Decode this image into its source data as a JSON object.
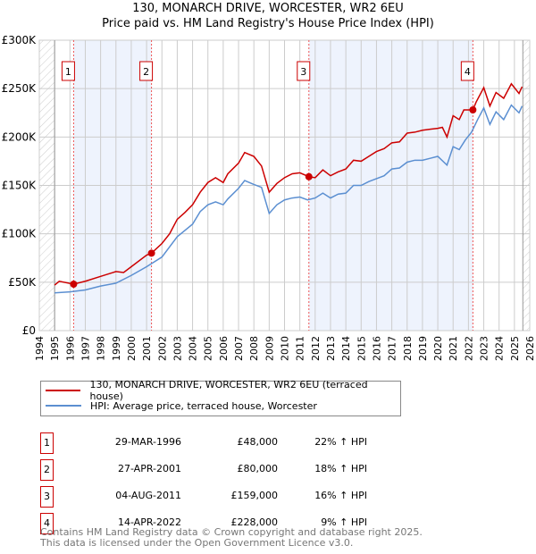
{
  "title": "130, MONARCH DRIVE, WORCESTER, WR2 6EU",
  "subtitle": "Price paid vs. HM Land Registry's House Price Index (HPI)",
  "chart_data": {
    "type": "line",
    "title": "130, MONARCH DRIVE, WORCESTER, WR2 6EU — Price paid vs. HM Land Registry's House Price Index (HPI)",
    "xlim": [
      1994,
      2026
    ],
    "ylim": [
      0,
      300000
    ],
    "x_ticks": [
      "1994",
      "1995",
      "1996",
      "1997",
      "1998",
      "1999",
      "2000",
      "2001",
      "2002",
      "2003",
      "2004",
      "2005",
      "2006",
      "2007",
      "2008",
      "2009",
      "2010",
      "2011",
      "2012",
      "2013",
      "2014",
      "2015",
      "2016",
      "2017",
      "2018",
      "2019",
      "2020",
      "2021",
      "2022",
      "2023",
      "2024",
      "2025",
      "2026"
    ],
    "y_ticks": [
      {
        "v": 0,
        "label": "£0"
      },
      {
        "v": 50000,
        "label": "£50K"
      },
      {
        "v": 100000,
        "label": "£100K"
      },
      {
        "v": 150000,
        "label": "£150K"
      },
      {
        "v": 200000,
        "label": "£200K"
      },
      {
        "v": 250000,
        "label": "£250K"
      },
      {
        "v": 300000,
        "label": "£300K"
      }
    ],
    "grid": true,
    "series": [
      {
        "name": "130, MONARCH DRIVE, WORCESTER, WR2 6EU (terraced house)",
        "color": "#cc0000",
        "x": [
          1995,
          1995.3,
          1996.24,
          1997,
          1998,
          1999,
          1999.5,
          2000,
          2001,
          2001.32,
          2002,
          2002.5,
          2003,
          2003.5,
          2004,
          2004.5,
          2005,
          2005.5,
          2006,
          2006.3,
          2007,
          2007.4,
          2008,
          2008.5,
          2009,
          2009.5,
          2010,
          2010.5,
          2011,
          2011.59,
          2012,
          2012.5,
          2013,
          2013.5,
          2014,
          2014.5,
          2015,
          2015.5,
          2016,
          2016.5,
          2017,
          2017.5,
          2018,
          2018.5,
          2019,
          2019.5,
          2020,
          2020.3,
          2020.6,
          2021,
          2021.4,
          2021.7,
          2022,
          2022.29,
          2022.5,
          2023,
          2023.4,
          2023.8,
          2024.3,
          2024.8,
          2025.3,
          2025.5
        ],
        "y": [
          47000,
          51000,
          48000,
          51000,
          56000,
          61000,
          60000,
          66000,
          78000,
          80000,
          90000,
          100000,
          115000,
          122000,
          130000,
          143000,
          153000,
          158000,
          153000,
          162000,
          173000,
          184000,
          180000,
          170000,
          143000,
          152000,
          158000,
          162000,
          163000,
          159000,
          158000,
          166000,
          160000,
          164000,
          167000,
          176000,
          175000,
          180000,
          185000,
          188000,
          194000,
          195000,
          204000,
          205000,
          207000,
          208000,
          209000,
          210000,
          200000,
          222000,
          218000,
          228000,
          228000,
          228000,
          236000,
          251000,
          232000,
          246000,
          240000,
          255000,
          245000,
          252000
        ]
      },
      {
        "name": "HPI: Average price, terraced house, Worcester",
        "color": "#5b8fd1",
        "x": [
          1995,
          1996,
          1997,
          1998,
          1999,
          2000,
          2001,
          2002,
          2003,
          2004,
          2004.5,
          2005,
          2005.5,
          2006,
          2006.3,
          2007,
          2007.4,
          2008,
          2008.5,
          2009,
          2009.5,
          2010,
          2010.5,
          2011,
          2011.5,
          2012,
          2012.5,
          2013,
          2013.5,
          2014,
          2014.5,
          2015,
          2015.5,
          2016,
          2016.5,
          2017,
          2017.5,
          2018,
          2018.5,
          2019,
          2019.5,
          2020,
          2020.6,
          2021,
          2021.4,
          2021.8,
          2022.2,
          2022.6,
          2023,
          2023.4,
          2023.8,
          2024.3,
          2024.8,
          2025.3,
          2025.5
        ],
        "y": [
          39000,
          40000,
          42000,
          46000,
          49000,
          57000,
          66000,
          76000,
          97000,
          110000,
          123000,
          130000,
          133000,
          130000,
          136000,
          147000,
          155000,
          151000,
          148000,
          121000,
          130000,
          135000,
          137000,
          138000,
          135000,
          137000,
          142000,
          137000,
          141000,
          142000,
          150000,
          150000,
          154000,
          157000,
          160000,
          167000,
          168000,
          174000,
          176000,
          176000,
          178000,
          180000,
          171000,
          190000,
          187000,
          197000,
          205000,
          218000,
          230000,
          213000,
          226000,
          218000,
          233000,
          225000,
          232000
        ]
      }
    ],
    "sales": [
      {
        "n": "1",
        "x": 1996.24,
        "y": 48000
      },
      {
        "n": "2",
        "x": 2001.32,
        "y": 80000
      },
      {
        "n": "3",
        "x": 2011.59,
        "y": 159000
      },
      {
        "n": "4",
        "x": 2022.29,
        "y": 228000
      }
    ],
    "legend_position": "below"
  },
  "legend": [
    {
      "label": "130, MONARCH DRIVE, WORCESTER, WR2 6EU (terraced house)",
      "color": "#cc0000"
    },
    {
      "label": "HPI: Average price, terraced house, Worcester",
      "color": "#5b8fd1"
    }
  ],
  "table": [
    {
      "n": "1",
      "date": "29-MAR-1996",
      "price": "£48,000",
      "hpi": "22% ↑ HPI"
    },
    {
      "n": "2",
      "date": "27-APR-2001",
      "price": "£80,000",
      "hpi": "18% ↑ HPI"
    },
    {
      "n": "3",
      "date": "04-AUG-2011",
      "price": "£159,000",
      "hpi": "16% ↑ HPI"
    },
    {
      "n": "4",
      "date": "14-APR-2022",
      "price": "£228,000",
      "hpi": "9% ↑ HPI"
    }
  ],
  "footer": [
    "Contains HM Land Registry data © Crown copyright and database right 2025.",
    "This data is licensed under the Open Government Licence v3.0."
  ]
}
